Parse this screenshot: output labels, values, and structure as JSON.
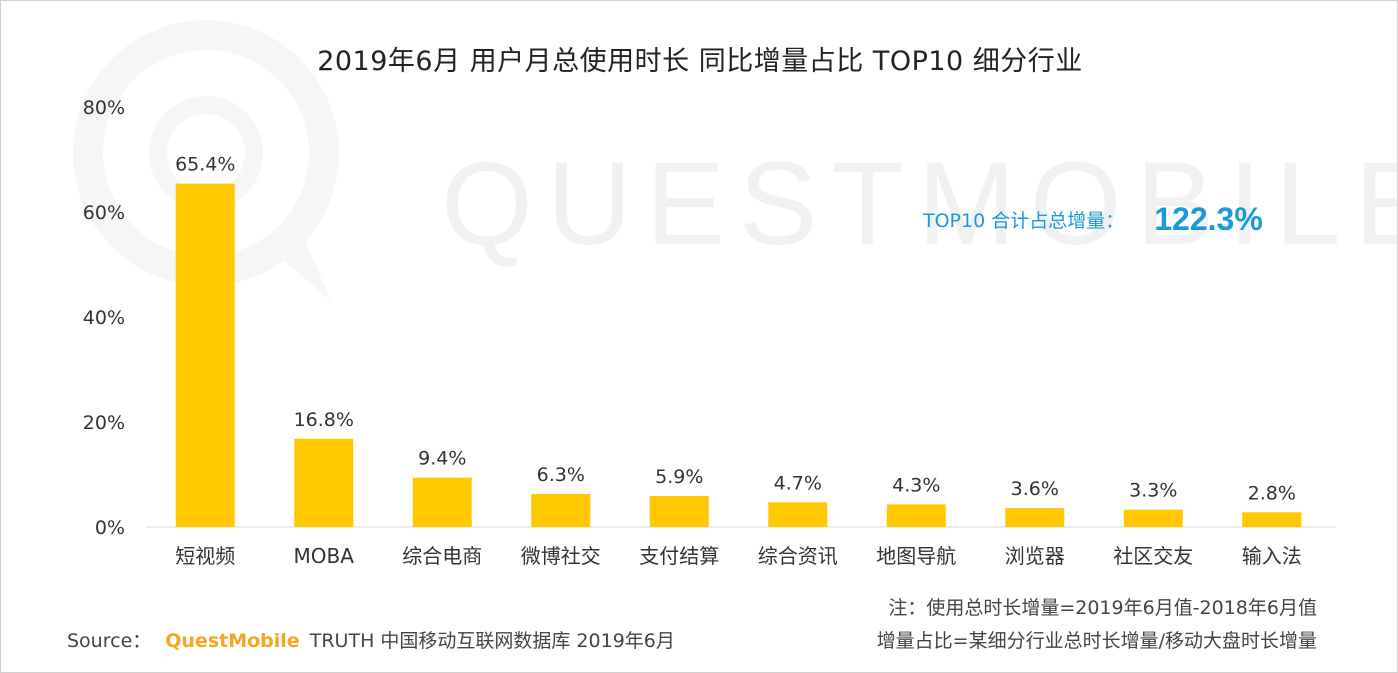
{
  "title": "2019年6月 用户月总使用时长 同比增量占比 TOP10 细分行业",
  "watermark_text": "QUESTMOBILE",
  "total": {
    "label": "TOP10 合计占总增量：",
    "value": "122.3%"
  },
  "notes": {
    "line1": "注：使用总时长增量=2019年6月值-2018年6月值",
    "line2": "增量占比=某细分行业总时长增量/移动大盘时长增量"
  },
  "source": {
    "prefix": "Source：",
    "brand": "QuestMobile",
    "text": "TRUTH 中国移动互联网数据库 2019年6月"
  },
  "colors": {
    "bar": "#ffc800",
    "accent": "#1a9bd7",
    "brand": "#f5a623"
  },
  "chart_data": {
    "type": "bar",
    "title": "2019年6月 用户月总使用时长 同比增量占比 TOP10 细分行业",
    "categories": [
      "短视频",
      "MOBA",
      "综合电商",
      "微博社交",
      "支付结算",
      "综合资讯",
      "地图导航",
      "浏览器",
      "社区交友",
      "输入法"
    ],
    "values": [
      65.4,
      16.8,
      9.4,
      6.3,
      5.9,
      4.7,
      4.3,
      3.6,
      3.3,
      2.8
    ],
    "data_labels": [
      "65.4%",
      "16.8%",
      "9.4%",
      "6.3%",
      "5.9%",
      "4.7%",
      "4.3%",
      "3.6%",
      "3.3%",
      "2.8%"
    ],
    "yticks": [
      "0%",
      "20%",
      "40%",
      "60%",
      "80%"
    ],
    "ytick_values": [
      0,
      20,
      40,
      60,
      80
    ],
    "ylim": [
      0,
      80
    ],
    "grid": false,
    "xlabel": "",
    "ylabel": ""
  }
}
